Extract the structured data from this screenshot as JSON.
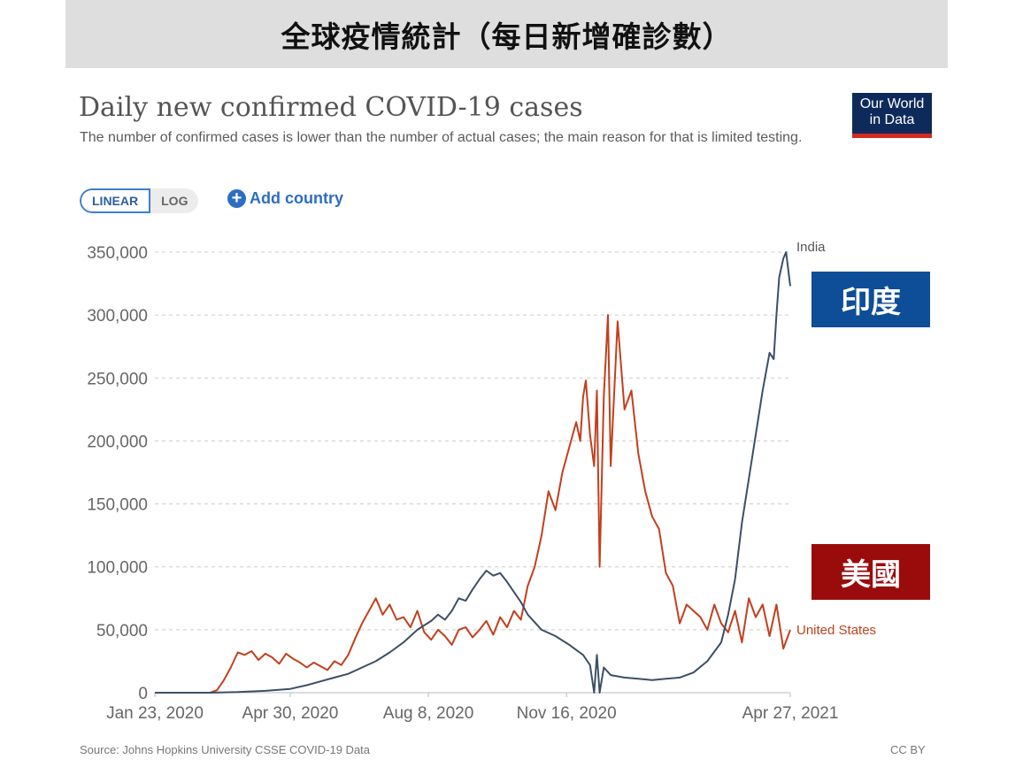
{
  "banner": {
    "title": "全球疫情統計（每日新增確診數）"
  },
  "header": {
    "title": "Daily new confirmed COVID-19 cases",
    "subtitle": "The number of confirmed cases is lower than the number of actual cases; the main reason for that is limited testing.",
    "logo_line1": "Our World",
    "logo_line2": "in Data"
  },
  "controls": {
    "scale_options": [
      "LINEAR",
      "LOG"
    ],
    "scale_linear": "LINEAR",
    "scale_log": "LOG",
    "selected_scale": "LINEAR",
    "add_country_label": "Add country"
  },
  "annotations": {
    "india_tag": "印度",
    "us_tag": "美國",
    "india_color": "#0e4d98",
    "us_color": "#9a0c0c"
  },
  "footer": {
    "source": "Source: Johns Hopkins University CSSE COVID-19 Data",
    "license": "CC BY"
  },
  "colors": {
    "india": "#3d4f66",
    "united_states": "#c1401d",
    "grid": "#cccccc"
  },
  "chart_data": {
    "type": "line",
    "title": "Daily new confirmed COVID-19 cases",
    "subtitle": "The number of confirmed cases is lower than the number of actual cases; the main reason for that is limited testing.",
    "xlabel": "",
    "ylabel": "",
    "ylim": [
      0,
      350000
    ],
    "yticks": [
      0,
      50000,
      100000,
      150000,
      200000,
      250000,
      300000,
      350000
    ],
    "ytick_labels": [
      "0",
      "50,000",
      "100,000",
      "150,000",
      "200,000",
      "250,000",
      "300,000",
      "350,000"
    ],
    "xtick_labels": [
      "Jan 23, 2020",
      "Apr 30, 2020",
      "Aug 8, 2020",
      "Nov 16, 2020",
      "Apr 27, 2021"
    ],
    "xtick_days": [
      0,
      98,
      198,
      298,
      460
    ],
    "grid": true,
    "legend": "inline labels at line ends",
    "x_unit": "days since Jan 23, 2020",
    "series": [
      {
        "name": "India",
        "x": [
          0,
          40,
          60,
          80,
          98,
          110,
          120,
          130,
          140,
          150,
          160,
          170,
          180,
          190,
          200,
          205,
          210,
          215,
          220,
          225,
          230,
          235,
          240,
          245,
          250,
          255,
          260,
          265,
          270,
          280,
          290,
          300,
          310,
          315,
          318,
          320,
          322,
          325,
          330,
          340,
          350,
          360,
          370,
          380,
          390,
          400,
          410,
          415,
          420,
          425,
          430,
          435,
          440,
          445,
          448,
          450,
          452,
          455,
          457,
          460
        ],
        "values": [
          0,
          0,
          500,
          1500,
          3000,
          6000,
          9000,
          12000,
          15000,
          20000,
          25000,
          32000,
          40000,
          50000,
          57000,
          62000,
          58000,
          65000,
          75000,
          73000,
          82000,
          90000,
          97000,
          93000,
          95000,
          88000,
          80000,
          72000,
          62000,
          50000,
          45000,
          38000,
          30000,
          22000,
          0,
          30000,
          0,
          20000,
          14000,
          12000,
          11000,
          10000,
          11000,
          12000,
          16000,
          25000,
          40000,
          62000,
          90000,
          135000,
          170000,
          205000,
          240000,
          270000,
          265000,
          300000,
          330000,
          345000,
          350000,
          323000
        ]
      },
      {
        "name": "United States",
        "x": [
          0,
          40,
          45,
          50,
          55,
          60,
          65,
          70,
          75,
          80,
          85,
          90,
          95,
          100,
          105,
          110,
          115,
          120,
          125,
          130,
          135,
          140,
          145,
          150,
          155,
          160,
          165,
          170,
          175,
          180,
          185,
          190,
          195,
          200,
          205,
          210,
          215,
          220,
          225,
          230,
          235,
          240,
          245,
          250,
          255,
          260,
          265,
          270,
          275,
          280,
          285,
          290,
          295,
          300,
          305,
          308,
          310,
          312,
          315,
          318,
          320,
          322,
          325,
          328,
          330,
          335,
          340,
          345,
          350,
          355,
          360,
          365,
          370,
          375,
          380,
          385,
          390,
          395,
          400,
          405,
          410,
          415,
          420,
          425,
          430,
          435,
          440,
          445,
          450,
          455,
          460
        ],
        "values": [
          0,
          0,
          2000,
          10000,
          20000,
          32000,
          30000,
          33000,
          26000,
          31000,
          28000,
          23000,
          31000,
          27000,
          24000,
          20000,
          24000,
          21000,
          18000,
          25000,
          22000,
          30000,
          43000,
          55000,
          65000,
          75000,
          62000,
          70000,
          58000,
          60000,
          52000,
          65000,
          48000,
          42000,
          50000,
          45000,
          38000,
          50000,
          52000,
          44000,
          50000,
          57000,
          46000,
          60000,
          52000,
          65000,
          58000,
          85000,
          100000,
          125000,
          160000,
          145000,
          175000,
          195000,
          215000,
          200000,
          235000,
          248000,
          205000,
          180000,
          240000,
          100000,
          235000,
          300000,
          180000,
          295000,
          225000,
          240000,
          190000,
          160000,
          140000,
          130000,
          95000,
          85000,
          55000,
          70000,
          65000,
          60000,
          50000,
          70000,
          55000,
          48000,
          65000,
          40000,
          75000,
          60000,
          70000,
          45000,
          70000,
          35000,
          50000
        ]
      }
    ]
  }
}
